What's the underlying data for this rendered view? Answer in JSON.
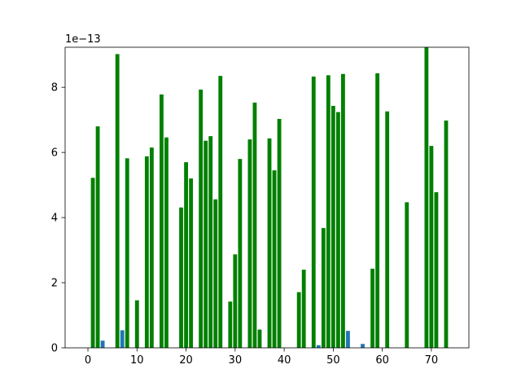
{
  "chart_data": {
    "type": "bar",
    "title": "",
    "xlabel": "",
    "ylabel": "",
    "offset_text": "1e−13",
    "xlim": [
      -4.65,
      77.65
    ],
    "ylim": [
      0,
      9.23
    ],
    "x_ticks": [
      0,
      10,
      20,
      30,
      40,
      50,
      60,
      70
    ],
    "x_tick_labels": [
      "0",
      "10",
      "20",
      "30",
      "40",
      "50",
      "60",
      "70"
    ],
    "y_ticks": [
      0,
      2,
      4,
      6,
      8
    ],
    "y_tick_labels": [
      "0",
      "2",
      "4",
      "6",
      "8"
    ],
    "grid": false,
    "legend": "none",
    "bar_width": 0.8,
    "series": [
      {
        "color": "#1f77b4",
        "x": [
          3,
          7,
          47,
          53,
          56
        ],
        "values": [
          0.22,
          0.54,
          0.08,
          0.52,
          0.12
        ]
      },
      {
        "color": "#008000",
        "x": [
          1,
          2,
          6,
          8,
          10,
          12,
          13,
          15,
          16,
          19,
          20,
          21,
          23,
          24,
          25,
          26,
          27,
          29,
          30,
          31,
          33,
          34,
          35,
          37,
          38,
          39,
          43,
          44,
          46,
          48,
          49,
          50,
          51,
          52,
          58,
          59,
          61,
          65,
          69,
          70,
          71,
          73
        ],
        "values": [
          5.22,
          6.8,
          9.02,
          5.82,
          1.46,
          5.88,
          6.15,
          7.78,
          6.46,
          4.31,
          5.7,
          5.2,
          7.93,
          6.36,
          6.5,
          4.56,
          8.35,
          1.42,
          2.87,
          5.8,
          6.4,
          7.53,
          0.56,
          6.43,
          5.45,
          7.03,
          1.71,
          2.4,
          8.33,
          3.68,
          8.37,
          7.43,
          7.24,
          8.41,
          2.43,
          8.43,
          7.26,
          4.47,
          9.23,
          6.2,
          4.78,
          6.98
        ]
      }
    ]
  }
}
